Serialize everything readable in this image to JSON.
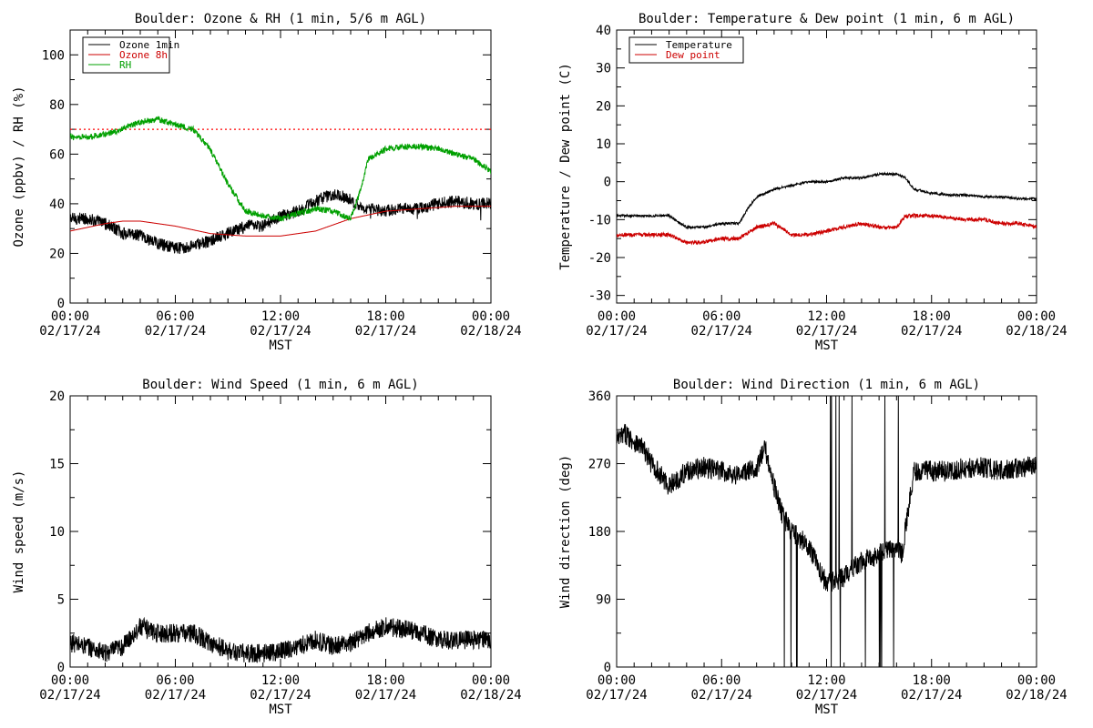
{
  "chart_data": [
    {
      "type": "line",
      "title": "Boulder: Ozone & RH (1 min, 5/6 m AGL)",
      "xlabel": "MST",
      "ylabel": "Ozone (ppbv) / RH (%)",
      "xlim": [
        0,
        24
      ],
      "ylim": [
        0,
        110
      ],
      "x_ticks": [
        {
          "x": 0,
          "time": "00:00",
          "date": "02/17/24"
        },
        {
          "x": 6,
          "time": "06:00",
          "date": "02/17/24"
        },
        {
          "x": 12,
          "time": "12:00",
          "date": "02/17/24"
        },
        {
          "x": 18,
          "time": "18:00",
          "date": "02/17/24"
        },
        {
          "x": 24,
          "time": "00:00",
          "date": "02/18/24"
        }
      ],
      "y_ticks": [
        0,
        20,
        40,
        60,
        80,
        100
      ],
      "legend_position": "top-left",
      "reference_line": {
        "y": 70,
        "style": "dotted",
        "color": "#ff0000"
      },
      "series": [
        {
          "name": "Ozone 1min",
          "color": "#000000",
          "noise": 2.5,
          "x": [
            0,
            1,
            2,
            3,
            4,
            5,
            6,
            7,
            8,
            9,
            10,
            11,
            12,
            13,
            14,
            15,
            16,
            16.5,
            17,
            18,
            19,
            20,
            21,
            22,
            23,
            24
          ],
          "y": [
            34,
            34,
            32,
            28,
            27,
            24,
            22,
            23,
            25,
            28,
            31,
            31,
            35,
            37,
            41,
            44,
            42,
            38,
            38,
            37,
            38,
            38,
            40,
            41,
            40,
            40
          ]
        },
        {
          "name": "Ozone 8h",
          "color": "#cc0000",
          "noise": 0,
          "x": [
            0,
            2,
            3,
            4,
            6,
            8,
            10,
            12,
            14,
            16,
            18,
            20,
            22,
            24
          ],
          "y": [
            29,
            32,
            33,
            33,
            31,
            28,
            27,
            27,
            29,
            34,
            37,
            38,
            39,
            39
          ]
        },
        {
          "name": "RH",
          "color": "#00a000",
          "noise": 1.2,
          "x": [
            0,
            1,
            2,
            3,
            4,
            5,
            6,
            7,
            8,
            9,
            10,
            11,
            12,
            13,
            14,
            15,
            16,
            16.5,
            17,
            18,
            19,
            20,
            21,
            22,
            23,
            24
          ],
          "y": [
            67,
            67,
            68,
            70,
            73,
            74,
            72,
            70,
            62,
            48,
            37,
            35,
            34,
            36,
            38,
            37,
            34,
            44,
            58,
            62,
            63,
            63,
            62,
            60,
            58,
            53
          ]
        }
      ]
    },
    {
      "type": "line",
      "title": "Boulder: Temperature & Dew point (1 min, 6 m AGL)",
      "xlabel": "MST",
      "ylabel": "Temperature / Dew point (C)",
      "xlim": [
        0,
        24
      ],
      "ylim": [
        -32,
        40
      ],
      "x_ticks": [
        {
          "x": 0,
          "time": "00:00",
          "date": "02/17/24"
        },
        {
          "x": 6,
          "time": "06:00",
          "date": "02/17/24"
        },
        {
          "x": 12,
          "time": "12:00",
          "date": "02/17/24"
        },
        {
          "x": 18,
          "time": "18:00",
          "date": "02/17/24"
        },
        {
          "x": 24,
          "time": "00:00",
          "date": "02/18/24"
        }
      ],
      "y_ticks": [
        -30,
        -20,
        -10,
        0,
        10,
        20,
        30,
        40
      ],
      "legend_position": "top-left",
      "series": [
        {
          "name": "Temperature",
          "color": "#000000",
          "noise": 0.3,
          "x": [
            0,
            1,
            2,
            3,
            4,
            5,
            6,
            7,
            7.5,
            8,
            9,
            10,
            11,
            12,
            13,
            14,
            15,
            16,
            16.5,
            17,
            18,
            19,
            20,
            21,
            22,
            23,
            24
          ],
          "y": [
            -9,
            -9,
            -9,
            -9,
            -12,
            -12,
            -11,
            -11,
            -7,
            -4,
            -2,
            -1,
            0,
            0,
            1,
            1,
            2,
            2,
            1,
            -2,
            -3,
            -3.5,
            -3.5,
            -4,
            -4,
            -4.5,
            -4.5
          ]
        },
        {
          "name": "Dew point",
          "color": "#cc0000",
          "noise": 0.5,
          "x": [
            0,
            1,
            2,
            3,
            4,
            5,
            6,
            7,
            8,
            9,
            10,
            11,
            12,
            13,
            14,
            15,
            16,
            16.5,
            17,
            18,
            19,
            20,
            21,
            22,
            23,
            24
          ],
          "y": [
            -14,
            -14,
            -14,
            -14,
            -16,
            -16,
            -15,
            -15,
            -12,
            -11,
            -14,
            -14,
            -13,
            -12,
            -11,
            -12,
            -12,
            -9,
            -9,
            -9,
            -9.5,
            -10,
            -10,
            -11,
            -11,
            -12
          ]
        }
      ]
    },
    {
      "type": "line",
      "title": "Boulder: Wind Speed (1 min, 6 m AGL)",
      "xlabel": "MST",
      "ylabel": "Wind speed (m/s)",
      "xlim": [
        0,
        24
      ],
      "ylim": [
        0,
        20
      ],
      "x_ticks": [
        {
          "x": 0,
          "time": "00:00",
          "date": "02/17/24"
        },
        {
          "x": 6,
          "time": "06:00",
          "date": "02/17/24"
        },
        {
          "x": 12,
          "time": "12:00",
          "date": "02/17/24"
        },
        {
          "x": 18,
          "time": "18:00",
          "date": "02/17/24"
        },
        {
          "x": 24,
          "time": "00:00",
          "date": "02/18/24"
        }
      ],
      "y_ticks": [
        0,
        5,
        10,
        15,
        20
      ],
      "series": [
        {
          "name": "",
          "color": "#000000",
          "noise": 0.7,
          "x": [
            0,
            1,
            2,
            3,
            4,
            5,
            6,
            7,
            8,
            9,
            10,
            11,
            12,
            13,
            14,
            15,
            16,
            17,
            18,
            19,
            20,
            21,
            22,
            23,
            24
          ],
          "y": [
            1.8,
            1.5,
            1.0,
            1.5,
            3.0,
            2.5,
            2.5,
            2.5,
            1.8,
            1.2,
            1.0,
            1.0,
            1.2,
            1.5,
            2.0,
            1.5,
            1.8,
            2.5,
            3.0,
            2.8,
            2.5,
            2.0,
            2.0,
            2.0,
            2.0
          ]
        }
      ]
    },
    {
      "type": "line",
      "title": "Boulder: Wind Direction (1 min, 6 m AGL)",
      "xlabel": "MST",
      "ylabel": "Wind direction (deg)",
      "xlim": [
        0,
        24
      ],
      "ylim": [
        0,
        360
      ],
      "x_ticks": [
        {
          "x": 0,
          "time": "00:00",
          "date": "02/17/24"
        },
        {
          "x": 6,
          "time": "06:00",
          "date": "02/17/24"
        },
        {
          "x": 12,
          "time": "12:00",
          "date": "02/17/24"
        },
        {
          "x": 18,
          "time": "18:00",
          "date": "02/17/24"
        },
        {
          "x": 24,
          "time": "00:00",
          "date": "02/18/24"
        }
      ],
      "y_ticks": [
        0,
        90,
        180,
        270,
        360
      ],
      "series": [
        {
          "name": "",
          "color": "#000000",
          "noise": 14,
          "x": [
            0,
            0.5,
            1,
            1.5,
            2,
            3,
            4,
            5,
            6,
            7,
            8,
            8.5,
            9,
            9.5,
            10,
            11,
            12,
            13,
            14,
            15,
            16,
            16.3,
            17,
            18,
            19,
            20,
            21,
            22,
            23,
            24
          ],
          "y": [
            300,
            310,
            300,
            290,
            270,
            240,
            260,
            265,
            260,
            255,
            265,
            290,
            240,
            200,
            180,
            160,
            110,
            120,
            140,
            150,
            160,
            150,
            260,
            260,
            260,
            265,
            265,
            260,
            265,
            270
          ]
        }
      ]
    }
  ]
}
